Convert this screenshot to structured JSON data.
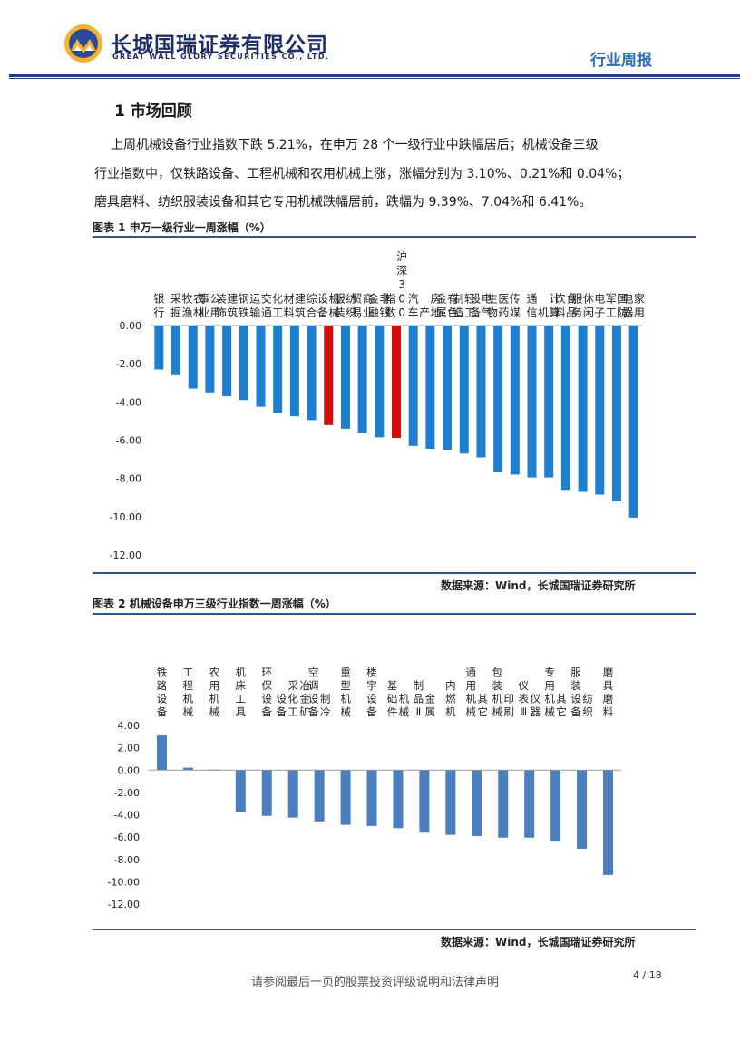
{
  "header": {
    "company_cn": "长城国瑞证券有限公司",
    "company_en": "GREAT WALL GLORY SECURITIES CO., LTD.",
    "report_type": "行业周报"
  },
  "section": {
    "title": "1 市场回顾",
    "paragraph_lines": [
      "上周机械设备行业指数下跌 5.21%，在申万 28 个一级行业中跌幅居后；机械设备三级",
      "行业指数中，仅铁路设备、工程机械和农用机械上涨，涨幅分别为 3.10%、0.21%和 0.04%；",
      "磨具磨料、纺织服装设备和其它专用机械跌幅居前，跌幅为 9.39%、7.04%和 6.41%。"
    ]
  },
  "figure1": {
    "title": "图表 1 申万一级行业一周涨幅（%）",
    "source": "数据来源：Wind，长城国瑞证券研究所"
  },
  "figure2": {
    "title": "图表 2 机械设备申万三级行业指数一周涨幅（%）",
    "source": "数据来源：Wind，长城国瑞证券研究所"
  },
  "footer": {
    "disclaimer": "请参阅最后一页的股票投资评级说明和法律声明",
    "page": "4 / 18"
  },
  "colors": {
    "bar_blue": "#1e7fd0",
    "bar_highlight": "#d40d0d",
    "bar_blue2": "#4a7ebd",
    "brand_navy": "#1f2e66"
  },
  "chart_data": [
    {
      "type": "bar",
      "title": "申万一级行业一周涨幅（%）",
      "categories": [
        "银行",
        "采掘",
        "农林牧渔",
        "公用事业",
        "建筑装饰",
        "钢铁",
        "交通运输",
        "化工",
        "建筑材料",
        "综合",
        "机械设备",
        "纺织服装",
        "商业贸易",
        "非银金融",
        "沪深300指数",
        "汽车",
        "房地产",
        "有色金属",
        "轻工制造",
        "电气设备",
        "医药生物",
        "传媒",
        "通信",
        "计算机",
        "食品饮料",
        "休闲服务",
        "电子",
        "国防军工",
        "家用电器"
      ],
      "label_columns": [
        [
          "银行"
        ],
        [
          "采掘"
        ],
        [
          "农林",
          "牧渔"
        ],
        [
          "公用",
          "事业"
        ],
        [
          "建筑",
          "装饰"
        ],
        [
          "钢铁"
        ],
        [
          "交通",
          "运输"
        ],
        [
          "化工"
        ],
        [
          "建筑",
          "材料"
        ],
        [
          "综合"
        ],
        [
          "机械",
          "设备"
        ],
        [
          "纺织",
          "服装"
        ],
        [
          "商业",
          "贸易"
        ],
        [
          "非银",
          "金融"
        ],
        [
          "沪深300",
          "指数"
        ],
        [
          "汽车"
        ],
        [
          "房地",
          "产"
        ],
        [
          "有色",
          "金属"
        ],
        [
          "轻工",
          "制造"
        ],
        [
          "电气",
          "设备"
        ],
        [
          "医药",
          "生物"
        ],
        [
          "传媒"
        ],
        [
          "通信"
        ],
        [
          "计算",
          "机"
        ],
        [
          "食品",
          "饮料"
        ],
        [
          "休闲",
          "服务"
        ],
        [
          "电子"
        ],
        [
          "国防",
          "军工"
        ],
        [
          "家用",
          "电器"
        ]
      ],
      "values": [
        -2.3,
        -2.6,
        -3.3,
        -3.5,
        -3.7,
        -3.9,
        -4.25,
        -4.6,
        -4.75,
        -4.95,
        -5.21,
        -5.4,
        -5.6,
        -5.85,
        -5.88,
        -6.3,
        -6.45,
        -6.5,
        -6.7,
        -6.9,
        -7.65,
        -7.8,
        -7.95,
        -7.95,
        -8.6,
        -8.7,
        -8.85,
        -9.2,
        -10.05
      ],
      "highlight": [
        "机械设备",
        "沪深300指数"
      ],
      "yticks": [
        "0.00",
        "-2.00",
        "-4.00",
        "-6.00",
        "-8.00",
        "-10.00",
        "-12.00"
      ],
      "ylim": [
        -12,
        0
      ]
    },
    {
      "type": "bar",
      "title": "机械设备申万三级行业指数一周涨幅（%）",
      "categories": [
        "铁路设备",
        "工程机械",
        "农用机械",
        "机床工具",
        "环保设备",
        "冶金矿采化工设备",
        "制冷空调设备",
        "重型机械",
        "楼宇设备",
        "机械基础件",
        "金属制品Ⅱ",
        "内燃机",
        "其它通用机械",
        "印刷包装机械",
        "仪器仪表Ⅲ",
        "其它专用机械",
        "纺织服装设备",
        "磨具磨料"
      ],
      "label_columns": [
        [
          "铁路设备"
        ],
        [
          "工程机械"
        ],
        [
          "农用机械"
        ],
        [
          "机床工具"
        ],
        [
          "环保设备"
        ],
        [
          "冶金矿",
          "采化工",
          "设备"
        ],
        [
          "制冷",
          "空调设备"
        ],
        [
          "重型机械"
        ],
        [
          "楼宇设备"
        ],
        [
          "机械",
          "基础件"
        ],
        [
          "金属",
          "制品Ⅱ"
        ],
        [
          "内燃机"
        ],
        [
          "其它",
          "通用机械"
        ],
        [
          "印刷",
          "包装机械"
        ],
        [
          "仪器",
          "仪表Ⅲ"
        ],
        [
          "其它",
          "专用机械"
        ],
        [
          "纺织",
          "服装设备"
        ],
        [
          "磨具磨料"
        ]
      ],
      "values": [
        3.1,
        0.21,
        0.04,
        -3.8,
        -4.1,
        -4.25,
        -4.6,
        -4.9,
        -5.0,
        -5.2,
        -5.6,
        -5.8,
        -5.9,
        -6.05,
        -6.05,
        -6.41,
        -7.04,
        -9.39
      ],
      "yticks": [
        "4.00",
        "2.00",
        "0.00",
        "-2.00",
        "-4.00",
        "-6.00",
        "-8.00",
        "-10.00",
        "-12.00"
      ],
      "ylim": [
        -12,
        4
      ]
    }
  ]
}
